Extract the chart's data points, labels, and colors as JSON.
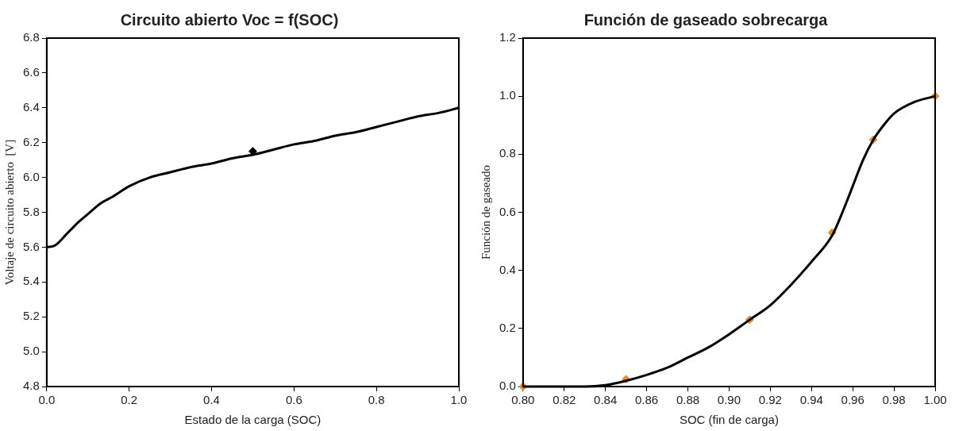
{
  "chart_data": [
    {
      "type": "line",
      "title": "Circuito abierto Voc = f(SOC)",
      "xlabel": "Estado de la carga (SOC)",
      "ylabel": "Voltaje de circuito abierto  [V]",
      "series": [
        {
          "color": "#000000",
          "x": [
            0,
            0.02,
            0.05,
            0.08,
            0.1,
            0.13,
            0.16,
            0.2,
            0.25,
            0.3,
            0.35,
            0.4,
            0.45,
            0.5,
            0.55,
            0.6,
            0.65,
            0.7,
            0.75,
            0.8,
            0.85,
            0.9,
            0.95,
            1.0
          ],
          "values": [
            5.6,
            5.61,
            5.68,
            5.75,
            5.79,
            5.85,
            5.89,
            5.95,
            6.0,
            6.03,
            6.06,
            6.08,
            6.11,
            6.13,
            6.16,
            6.19,
            6.21,
            6.24,
            6.26,
            6.29,
            6.32,
            6.35,
            6.37,
            6.4
          ]
        },
        {
          "type": "scatter",
          "color": "#000000",
          "marker": "diamond",
          "x": [
            0.5
          ],
          "values": [
            6.15
          ]
        }
      ],
      "xlim": [
        0,
        1
      ],
      "xticks": [
        {
          "value": 0,
          "label": "0.0"
        },
        0.2,
        0.4,
        0.6,
        0.8,
        {
          "value": 1,
          "label": "1.0"
        }
      ],
      "ylim": [
        4.8,
        6.8
      ],
      "yticks": [
        4.8,
        {
          "value": 5,
          "label": "5.0"
        },
        5.2,
        5.4,
        5.6,
        5.8,
        {
          "value": 6,
          "label": "6.0"
        },
        6.2,
        6.4,
        6.6,
        6.8
      ],
      "grid": false,
      "legend": false
    },
    {
      "type": "line",
      "title": "Función de gaseado sobrecarga",
      "xlabel": "SOC (fin de carga)",
      "ylabel": "Función de gaseado",
      "series": [
        {
          "color": "#000000",
          "x": [
            0.8,
            0.83,
            0.84,
            0.85,
            0.86,
            0.87,
            0.88,
            0.89,
            0.9,
            0.91,
            0.92,
            0.93,
            0.94,
            0.95,
            0.955,
            0.96,
            0.965,
            0.97,
            0.975,
            0.98,
            0.99,
            1.0
          ],
          "values": [
            0,
            0,
            0.005,
            0.02,
            0.04,
            0.065,
            0.1,
            0.135,
            0.18,
            0.23,
            0.28,
            0.35,
            0.43,
            0.52,
            0.6,
            0.69,
            0.78,
            0.85,
            0.9,
            0.94,
            0.98,
            1.0
          ]
        },
        {
          "type": "scatter",
          "color": "#f28c1e",
          "marker": "diamond",
          "x": [
            0.8,
            0.85,
            0.91,
            0.95,
            0.97,
            1.0
          ],
          "values": [
            0,
            0.025,
            0.23,
            0.53,
            0.85,
            1.0
          ]
        }
      ],
      "xlim": [
        0.8,
        1
      ],
      "xticks": [
        {
          "value": 0.8,
          "label": "0.80"
        },
        0.82,
        0.84,
        0.86,
        0.88,
        {
          "value": 0.9,
          "label": "0.90"
        },
        0.92,
        0.94,
        0.96,
        0.98,
        {
          "value": 1,
          "label": "1.00"
        }
      ],
      "ylim": [
        0,
        1.2
      ],
      "yticks": [
        {
          "value": 0,
          "label": "0.0"
        },
        0.2,
        0.4,
        0.6,
        0.8,
        {
          "value": 1,
          "label": "1.0"
        },
        1.2
      ],
      "grid": false,
      "legend": false
    }
  ]
}
